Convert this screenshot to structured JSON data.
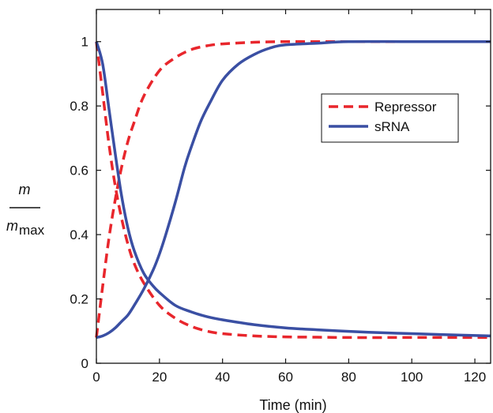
{
  "chart_data": {
    "type": "line",
    "title": "",
    "xlabel": "Time (min)",
    "ylabel": {
      "numerator": "m",
      "denominator_base": "m",
      "denominator_sub": "max"
    },
    "xlim": [
      0,
      125
    ],
    "ylim": [
      0,
      1.1
    ],
    "x_ticks": [
      0,
      20,
      40,
      60,
      80,
      100,
      120
    ],
    "y_ticks": [
      0,
      0.2,
      0.4,
      0.6,
      0.8,
      1
    ],
    "x_tick_labels": [
      "0",
      "20",
      "40",
      "60",
      "80",
      "100",
      "120"
    ],
    "y_tick_labels": [
      "0",
      "0.2",
      "0.4",
      "0.6",
      "0.8",
      "1"
    ],
    "grid": false,
    "legend_position": "right-upper",
    "series": [
      {
        "name": "Repressor",
        "style": "dashed",
        "color": "#e8262c",
        "curves": [
          {
            "x": [
              0,
              2,
              4,
              6,
              8,
              10,
              12,
              15,
              20,
              25,
              30,
              35,
              40,
              50,
              60,
              70,
              80,
              100,
              125
            ],
            "y": [
              0.08,
              0.24,
              0.39,
              0.51,
              0.61,
              0.69,
              0.75,
              0.83,
              0.91,
              0.95,
              0.975,
              0.987,
              0.993,
              0.998,
              1.0,
              1.0,
              1.0,
              1.0,
              1.0
            ]
          },
          {
            "x": [
              0,
              2,
              4,
              6,
              8,
              10,
              12,
              15,
              20,
              25,
              30,
              35,
              40,
              50,
              60,
              70,
              80,
              100,
              125
            ],
            "y": [
              1.0,
              0.84,
              0.68,
              0.55,
              0.45,
              0.37,
              0.31,
              0.25,
              0.18,
              0.14,
              0.115,
              0.1,
              0.092,
              0.085,
              0.082,
              0.081,
              0.08,
              0.08,
              0.08
            ]
          }
        ]
      },
      {
        "name": "sRNA",
        "style": "solid",
        "color": "#3a4fa3",
        "curves": [
          {
            "x": [
              0,
              2,
              4,
              6,
              8,
              10,
              12,
              15,
              18,
              20,
              22,
              25,
              28,
              30,
              33,
              36,
              40,
              45,
              50,
              55,
              60,
              70,
              80,
              100,
              125
            ],
            "y": [
              0.08,
              0.085,
              0.095,
              0.11,
              0.13,
              0.15,
              0.18,
              0.23,
              0.29,
              0.34,
              0.4,
              0.5,
              0.61,
              0.67,
              0.75,
              0.81,
              0.88,
              0.93,
              0.96,
              0.98,
              0.99,
              0.995,
              1.0,
              1.0,
              1.0
            ]
          },
          {
            "x": [
              0,
              2,
              4,
              6,
              8,
              10,
              12,
              15,
              18,
              20,
              25,
              30,
              35,
              40,
              50,
              60,
              70,
              80,
              90,
              100,
              110,
              125
            ],
            "y": [
              1.0,
              0.93,
              0.79,
              0.65,
              0.52,
              0.42,
              0.35,
              0.28,
              0.24,
              0.22,
              0.18,
              0.16,
              0.145,
              0.135,
              0.12,
              0.11,
              0.104,
              0.099,
              0.095,
              0.092,
              0.089,
              0.085
            ]
          }
        ]
      }
    ]
  }
}
